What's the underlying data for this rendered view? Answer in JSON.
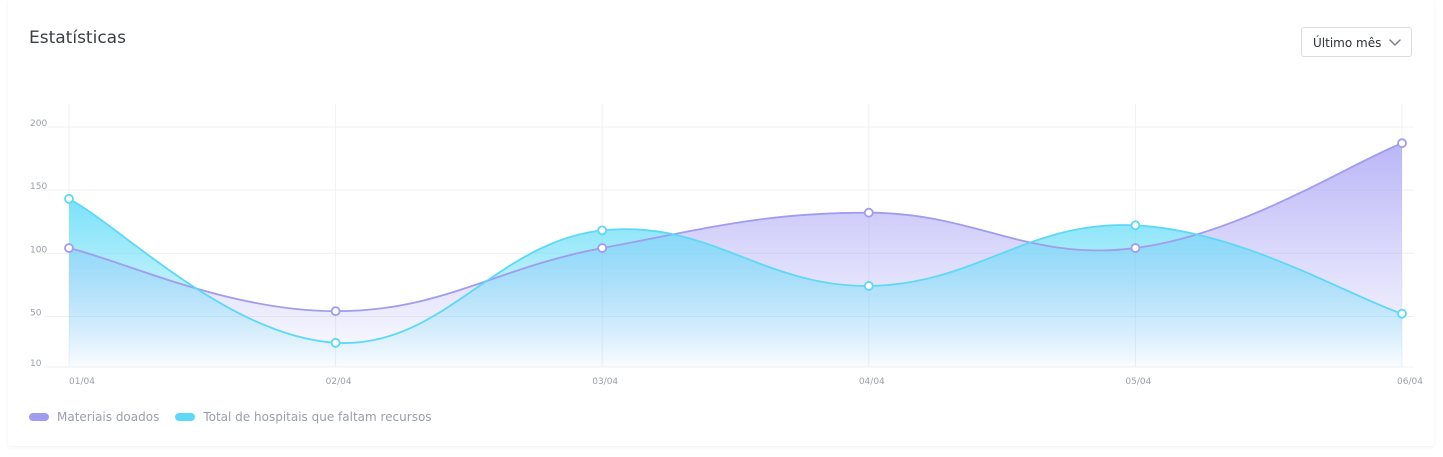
{
  "header": {
    "title": "Estatísticas",
    "period_select": {
      "selected": "Último mês"
    }
  },
  "icons": {
    "select_arrow": "chevron-down-icon"
  },
  "colors": {
    "series_1": "#a09cf0",
    "series_2": "#5dd8f7",
    "grid": "#eef0f3"
  },
  "chart_data": {
    "type": "area",
    "title": "Estatísticas",
    "x": [
      "01/04",
      "02/04",
      "03/04",
      "04/04",
      "05/04",
      "06/04"
    ],
    "y_ticks": [
      10,
      50,
      100,
      150,
      200
    ],
    "ylim": [
      0,
      215
    ],
    "grid": true,
    "legend": "bottom-left",
    "series": [
      {
        "name": "Materiais doados",
        "values": [
          101,
          51,
          101,
          129,
          101,
          184
        ]
      },
      {
        "name": "Total de hospitais que faltam recursos",
        "values": [
          140,
          26,
          115,
          71,
          119,
          49
        ]
      }
    ]
  }
}
